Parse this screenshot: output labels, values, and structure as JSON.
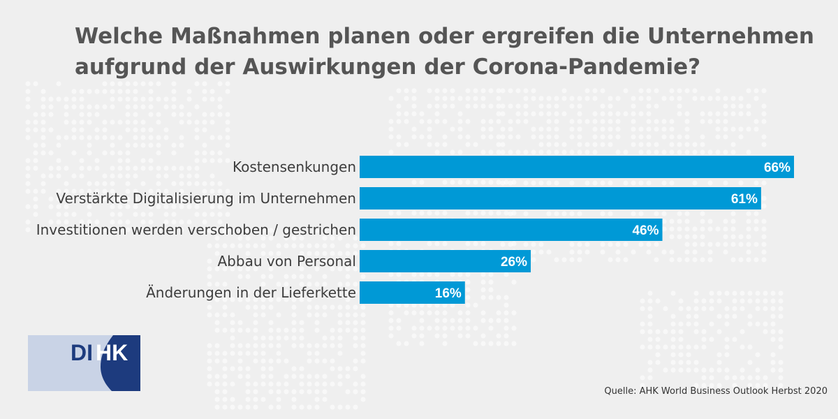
{
  "title": {
    "line1": "Welche Maßnahmen planen oder ergreifen die Unternehmen",
    "line2": "aufgrund der Auswirkungen der Corona-Pandemie?"
  },
  "chart_data": {
    "type": "bar",
    "orientation": "horizontal",
    "title": "Welche Maßnahmen planen oder ergreifen die Unternehmen aufgrund der Auswirkungen der Corona-Pandemie?",
    "categories": [
      "Kostensenkungen",
      "Verstärkte Digitalisierung im Unternehmen",
      "Investitionen werden verschoben / gestrichen",
      "Abbau von Personal",
      "Änderungen in der Lieferkette"
    ],
    "values": [
      66,
      61,
      46,
      26,
      16
    ],
    "value_labels": [
      "66%",
      "61%",
      "46%",
      "26%",
      "16%"
    ],
    "unit": "%",
    "xlim": [
      0,
      66
    ],
    "xlabel": "",
    "ylabel": "",
    "grid": false,
    "legend": "none",
    "bar_color": "#0099d6"
  },
  "logo": {
    "text": "DIHK",
    "dark_color": "#1d3b7e",
    "light_color": "#c9d3e6"
  },
  "source": "Quelle: AHK World Business Outlook Herbst 2020",
  "colors": {
    "background": "#efefef",
    "title": "#555555",
    "map_dots": "#ffffff"
  }
}
